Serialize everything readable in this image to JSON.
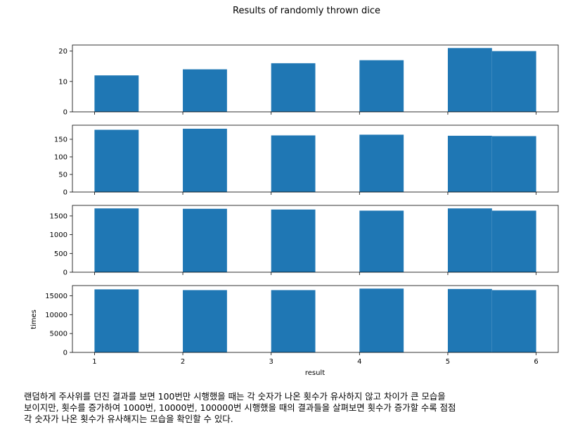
{
  "chart_data": {
    "type": "bar",
    "title": "Results of randomly thrown dice",
    "xlabel": "result",
    "ylabel": "times",
    "xlim": [
      0.75,
      6.25
    ],
    "x_ticks": [
      1,
      2,
      3,
      4,
      5,
      6
    ],
    "bin_edges": [
      1.0,
      1.5,
      2.0,
      2.5,
      3.0,
      3.5,
      4.0,
      4.5,
      5.0,
      5.5,
      6.0
    ],
    "grid": false,
    "color": "#1f77b4",
    "panels": [
      {
        "ylim": [
          0,
          22
        ],
        "y_ticks": [
          0,
          10,
          20
        ],
        "values": [
          12,
          0,
          14,
          0,
          16,
          0,
          17,
          0,
          21,
          20
        ]
      },
      {
        "ylim": [
          0,
          190
        ],
        "y_ticks": [
          0,
          50,
          100,
          150
        ],
        "values": [
          177,
          0,
          180,
          0,
          161,
          0,
          163,
          0,
          160,
          159
        ]
      },
      {
        "ylim": [
          0,
          1780
        ],
        "y_ticks": [
          0,
          500,
          1000,
          1500
        ],
        "values": [
          1700,
          0,
          1690,
          0,
          1670,
          0,
          1640,
          0,
          1700,
          1640
        ]
      },
      {
        "ylim": [
          0,
          17700
        ],
        "y_ticks": [
          0,
          5000,
          10000,
          15000
        ],
        "values": [
          16700,
          0,
          16500,
          0,
          16500,
          0,
          16900,
          0,
          16800,
          16500
        ]
      }
    ]
  },
  "caption": {
    "lines": [
      "랜덤하게 주사위를 던진 결과를 보면 100번만 시행했을 때는 각 숫자가 나온 횟수가 유사하지 않고 차이가 큰 모습을",
      "보이지만, 횟수를 증가하여 1000번, 10000번, 100000번 시행했을 때의 결과들을 살펴보면 횟수가 증가할 수록 점점",
      "각 숫자가 나온 횟수가 유사해지는 모습을 확인할 수 있다."
    ]
  }
}
